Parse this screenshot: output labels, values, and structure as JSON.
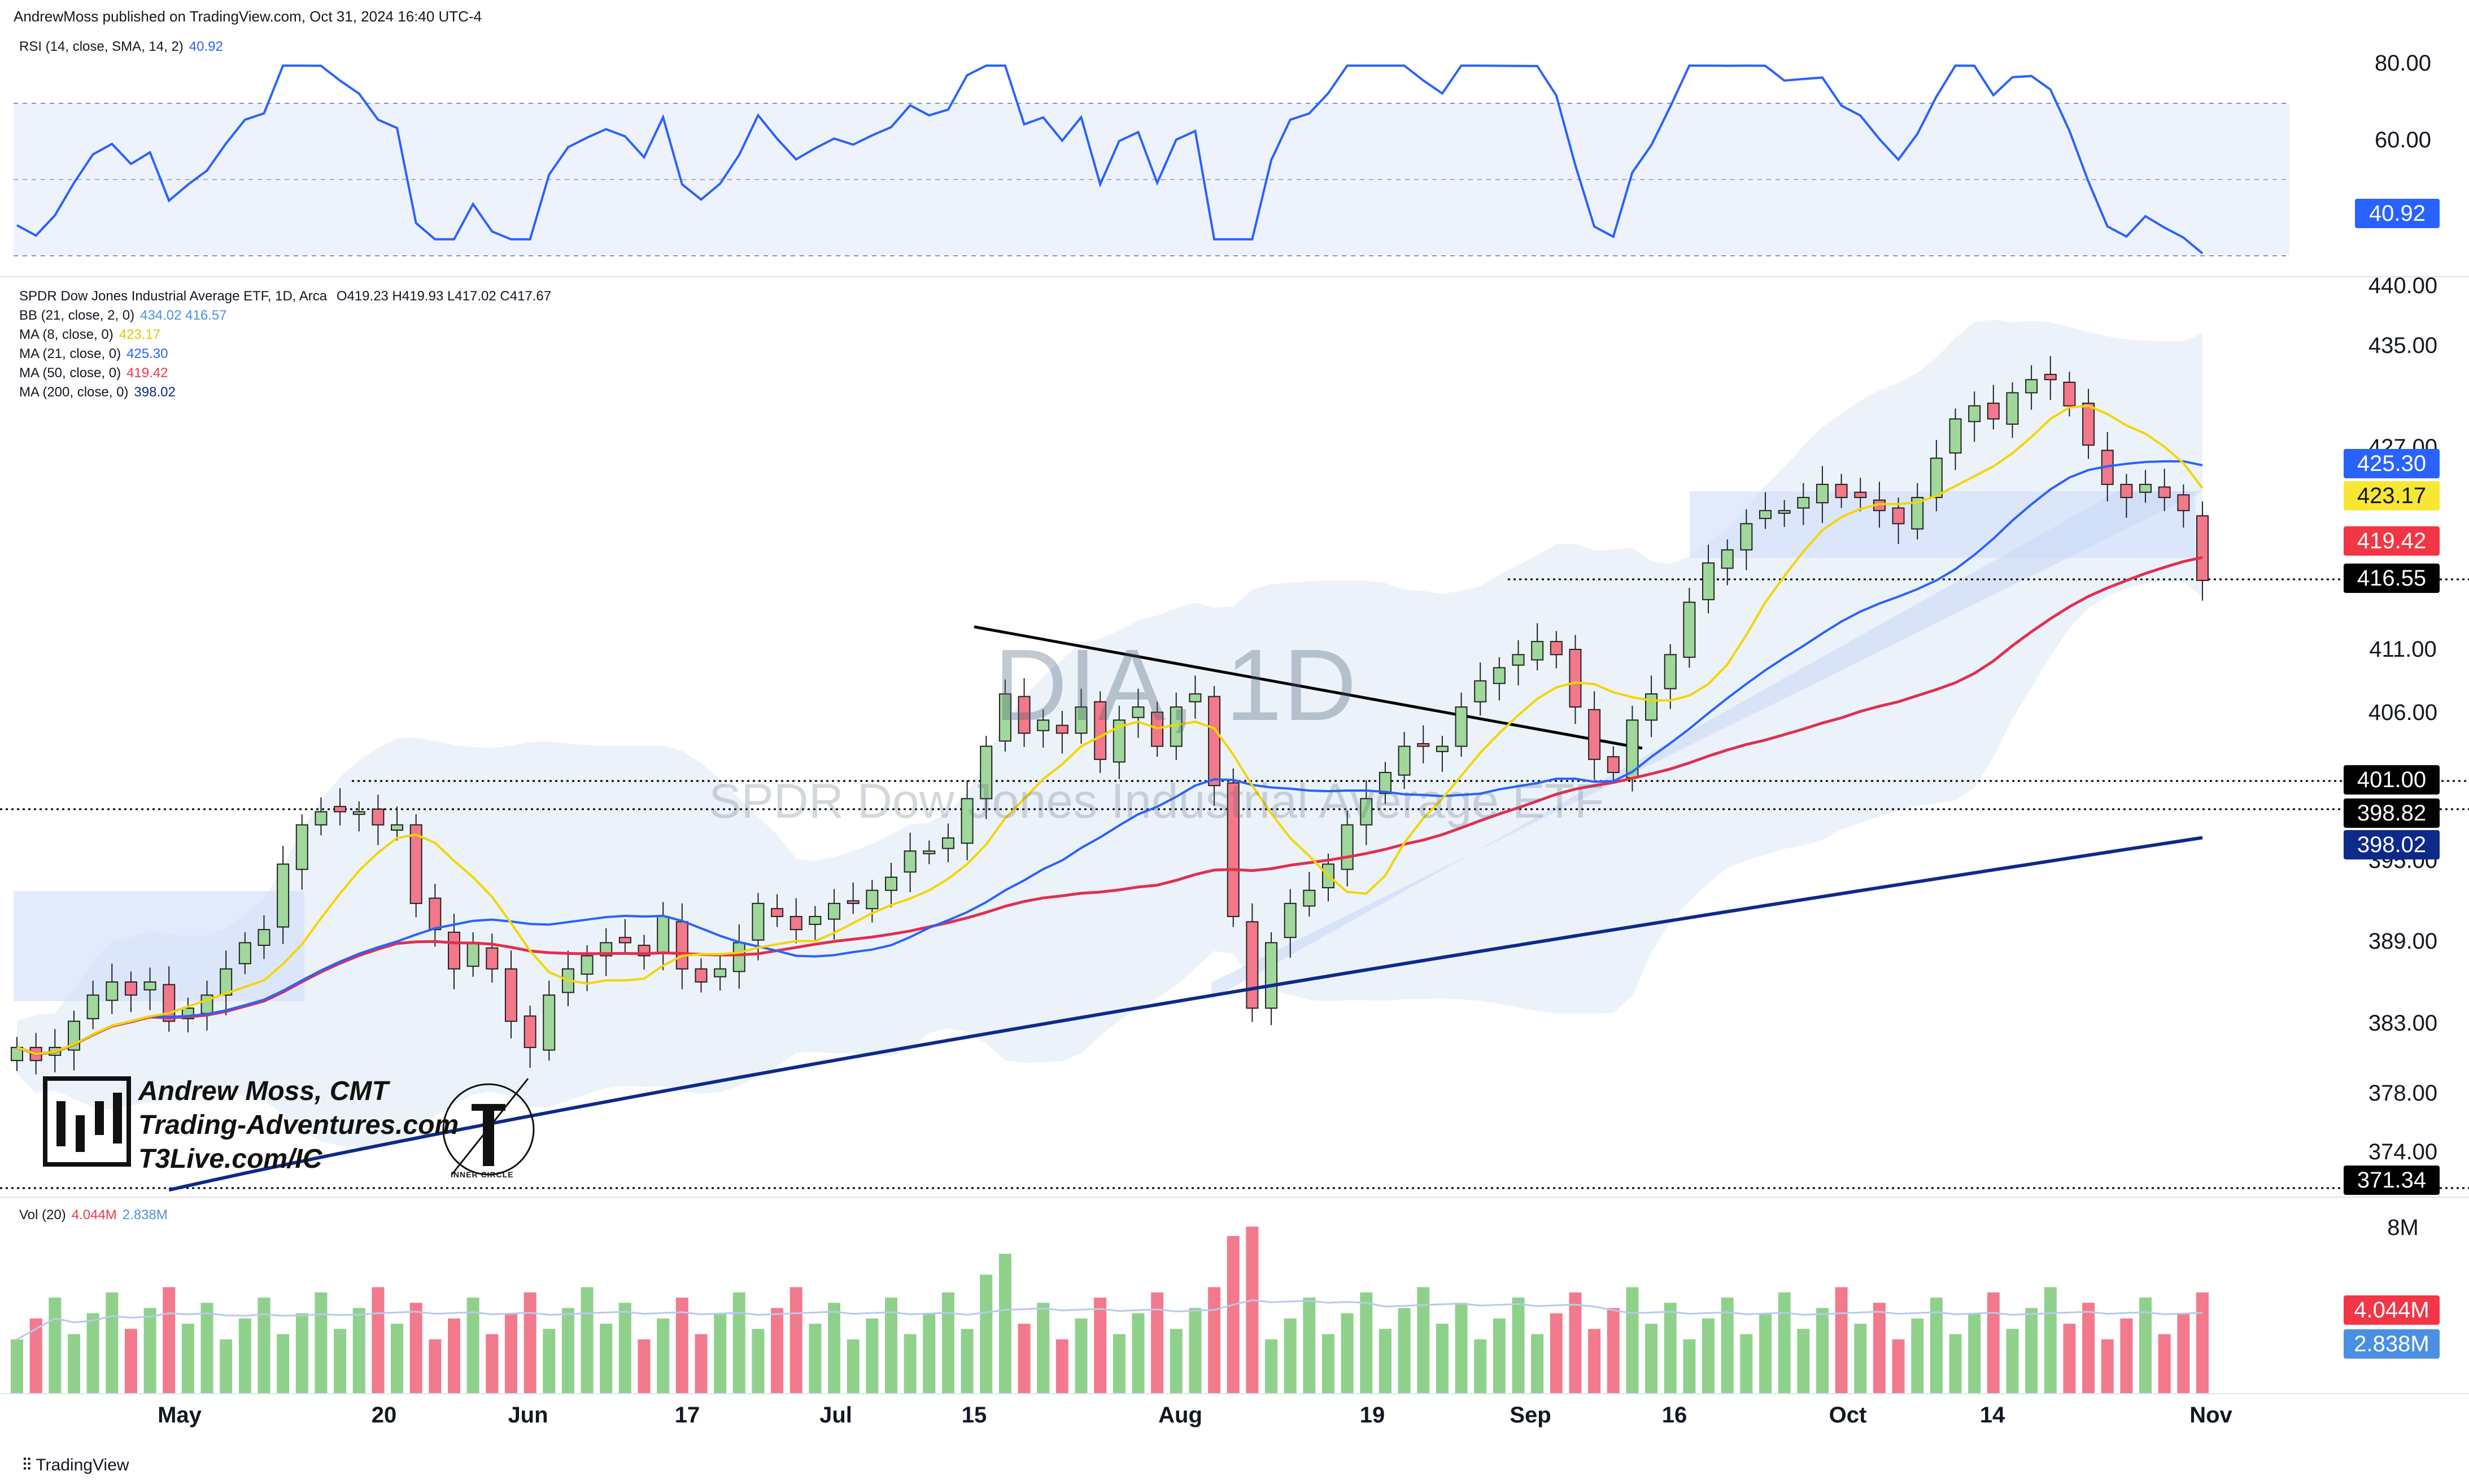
{
  "header": {
    "publisher": "AndrewMoss published on TradingView.com, Oct 31, 2024 16:40 UTC-4"
  },
  "rsi": {
    "label": "RSI (14, close, SMA, 14, 2)",
    "value": "40.92",
    "axis": [
      "80.00",
      "60.00"
    ],
    "color": "#2962ff"
  },
  "main": {
    "title": "SPDR Dow Jones Industrial Average ETF, 1D, Arca",
    "ohlc": "O419.23  H419.93  L417.02  C417.67",
    "indicators": [
      {
        "label": "BB (21, close, 2, 0)",
        "values": "434.02  416.57",
        "color": "#4a90e2"
      },
      {
        "label": "MA (8, close, 0)",
        "values": "423.17",
        "color": "#f2e600"
      },
      {
        "label": "MA (21, close, 0)",
        "values": "425.30",
        "color": "#2962ff"
      },
      {
        "label": "MA (50, close, 0)",
        "values": "419.42",
        "color": "#f23645"
      },
      {
        "label": "MA (200, close, 0)",
        "values": "398.02",
        "color": "#0d2a8a"
      }
    ],
    "axis": [
      "440.00",
      "435.00",
      "427.00",
      "411.00",
      "406.00",
      "395.00",
      "389.00",
      "383.00",
      "378.00",
      "374.00"
    ],
    "price_labels": [
      {
        "text": "425.30",
        "bg": "#2962ff",
        "fg": "#ffffff"
      },
      {
        "text": "423.17",
        "bg": "#f7e733",
        "fg": "#131722"
      },
      {
        "text": "419.42",
        "bg": "#f23645",
        "fg": "#ffffff"
      },
      {
        "text": "416.55",
        "bg": "#000000",
        "fg": "#ffffff"
      },
      {
        "text": "401.00",
        "bg": "#000000",
        "fg": "#ffffff"
      },
      {
        "text": "398.82",
        "bg": "#000000",
        "fg": "#ffffff"
      },
      {
        "text": "398.02",
        "bg": "#0d2a8a",
        "fg": "#ffffff"
      },
      {
        "text": "371.34",
        "bg": "#000000",
        "fg": "#ffffff"
      }
    ],
    "watermark": {
      "symbol": "DIA, 1D",
      "name": "SPDR Dow Jones Industrial Average ETF"
    },
    "branding": [
      "Andrew Moss, CMT",
      "Trading-Adventures.com",
      "T3Live.com/IC"
    ],
    "logo_text": "INNER CIRCLE"
  },
  "volume": {
    "label": "Vol (20)",
    "value": "4.044M",
    "ma_value": "2.838M",
    "axis": [
      "8M"
    ],
    "labels": [
      {
        "text": "4.044M",
        "bg": "#f23645",
        "fg": "#ffffff"
      },
      {
        "text": "2.838M",
        "bg": "#4a90e2",
        "fg": "#ffffff"
      }
    ]
  },
  "dates": [
    "May",
    "20",
    "Jun",
    "17",
    "Jul",
    "15",
    "Aug",
    "19",
    "Sep",
    "16",
    "Oct",
    "14",
    "Nov"
  ],
  "footer": {
    "brand": "TradingView"
  },
  "chart_data": {
    "type": "candlestick",
    "symbol": "DIA",
    "interval": "1D",
    "price_range": [
      371,
      441
    ],
    "close_series": [
      382,
      381,
      382,
      384,
      386,
      387,
      386,
      387,
      384,
      385,
      386,
      388,
      390,
      391,
      396,
      399,
      400,
      400,
      400,
      399,
      399,
      393,
      391,
      388,
      390,
      388,
      384,
      382,
      386,
      388,
      389,
      390,
      390,
      389,
      392,
      388,
      387,
      388,
      390,
      393,
      392,
      391,
      392,
      393,
      393,
      394,
      395,
      397,
      397,
      398,
      401,
      405,
      409,
      406,
      407,
      406,
      408,
      404,
      407,
      408,
      405,
      408,
      409,
      402,
      392,
      385,
      390,
      393,
      394,
      396,
      399,
      401,
      403,
      405,
      405,
      405,
      408,
      410,
      411,
      412,
      413,
      412,
      408,
      404,
      403,
      407,
      409,
      412,
      416,
      419,
      420,
      422,
      423,
      423,
      424,
      425,
      424,
      424,
      423,
      422,
      424,
      427,
      430,
      431,
      430,
      432,
      433,
      433,
      431,
      428,
      425,
      424,
      425,
      424,
      423,
      417.67
    ],
    "ma8_last": 423.17,
    "ma21_last": 425.3,
    "ma50_last": 419.42,
    "ma200_last": 398.02,
    "bb_upper_last": 434.02,
    "bb_lower_last": 416.57,
    "rsi_last": 40.92,
    "volume_last": "4.044M",
    "volume_ma_last": "2.838M"
  }
}
